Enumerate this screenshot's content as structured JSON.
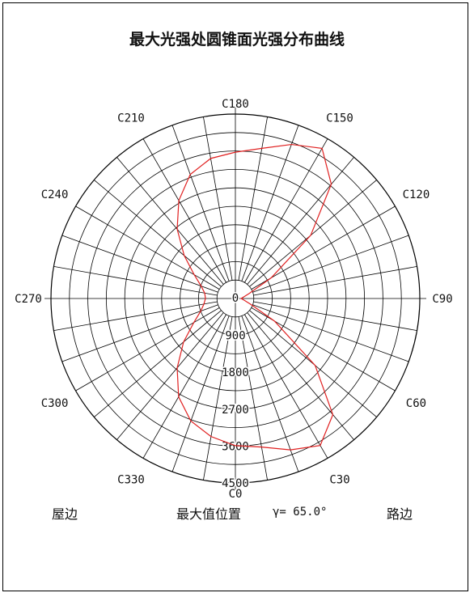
{
  "chart_data": {
    "type": "polar",
    "title": "最大光强处圆锥面光强分布曲线",
    "angle_labels": [
      "C0",
      "C30",
      "C60",
      "C90",
      "C120",
      "C150",
      "C180",
      "C210",
      "C240",
      "C270",
      "C300",
      "C330"
    ],
    "radial_ticks": [
      "0",
      "900",
      "1800",
      "2700",
      "3600",
      "4500"
    ],
    "rmax": 4500,
    "grid": true,
    "series": [
      {
        "color": "#e02020",
        "points": [
          [
            0,
            3590
          ],
          [
            10,
            3680
          ],
          [
            20,
            3930
          ],
          [
            30,
            4140
          ],
          [
            40,
            3700
          ],
          [
            50,
            2540
          ],
          [
            60,
            1100
          ],
          [
            70,
            380
          ],
          [
            80,
            210
          ],
          [
            90,
            140
          ],
          [
            100,
            200
          ],
          [
            110,
            360
          ],
          [
            120,
            1010
          ],
          [
            130,
            2400
          ],
          [
            140,
            3640
          ],
          [
            150,
            4230
          ],
          [
            160,
            4000
          ],
          [
            170,
            3720
          ],
          [
            180,
            3570
          ],
          [
            190,
            3470
          ],
          [
            200,
            3220
          ],
          [
            210,
            2760
          ],
          [
            220,
            2210
          ],
          [
            230,
            1630
          ],
          [
            240,
            1160
          ],
          [
            250,
            890
          ],
          [
            260,
            760
          ],
          [
            270,
            730
          ],
          [
            280,
            780
          ],
          [
            290,
            900
          ],
          [
            300,
            1170
          ],
          [
            310,
            1650
          ],
          [
            320,
            2210
          ],
          [
            330,
            2770
          ],
          [
            340,
            3180
          ],
          [
            350,
            3420
          ]
        ]
      }
    ]
  },
  "footer": {
    "left": "屋边",
    "middle": "最大值位置",
    "gamma": "γ= 65.0°",
    "right": "路边"
  }
}
